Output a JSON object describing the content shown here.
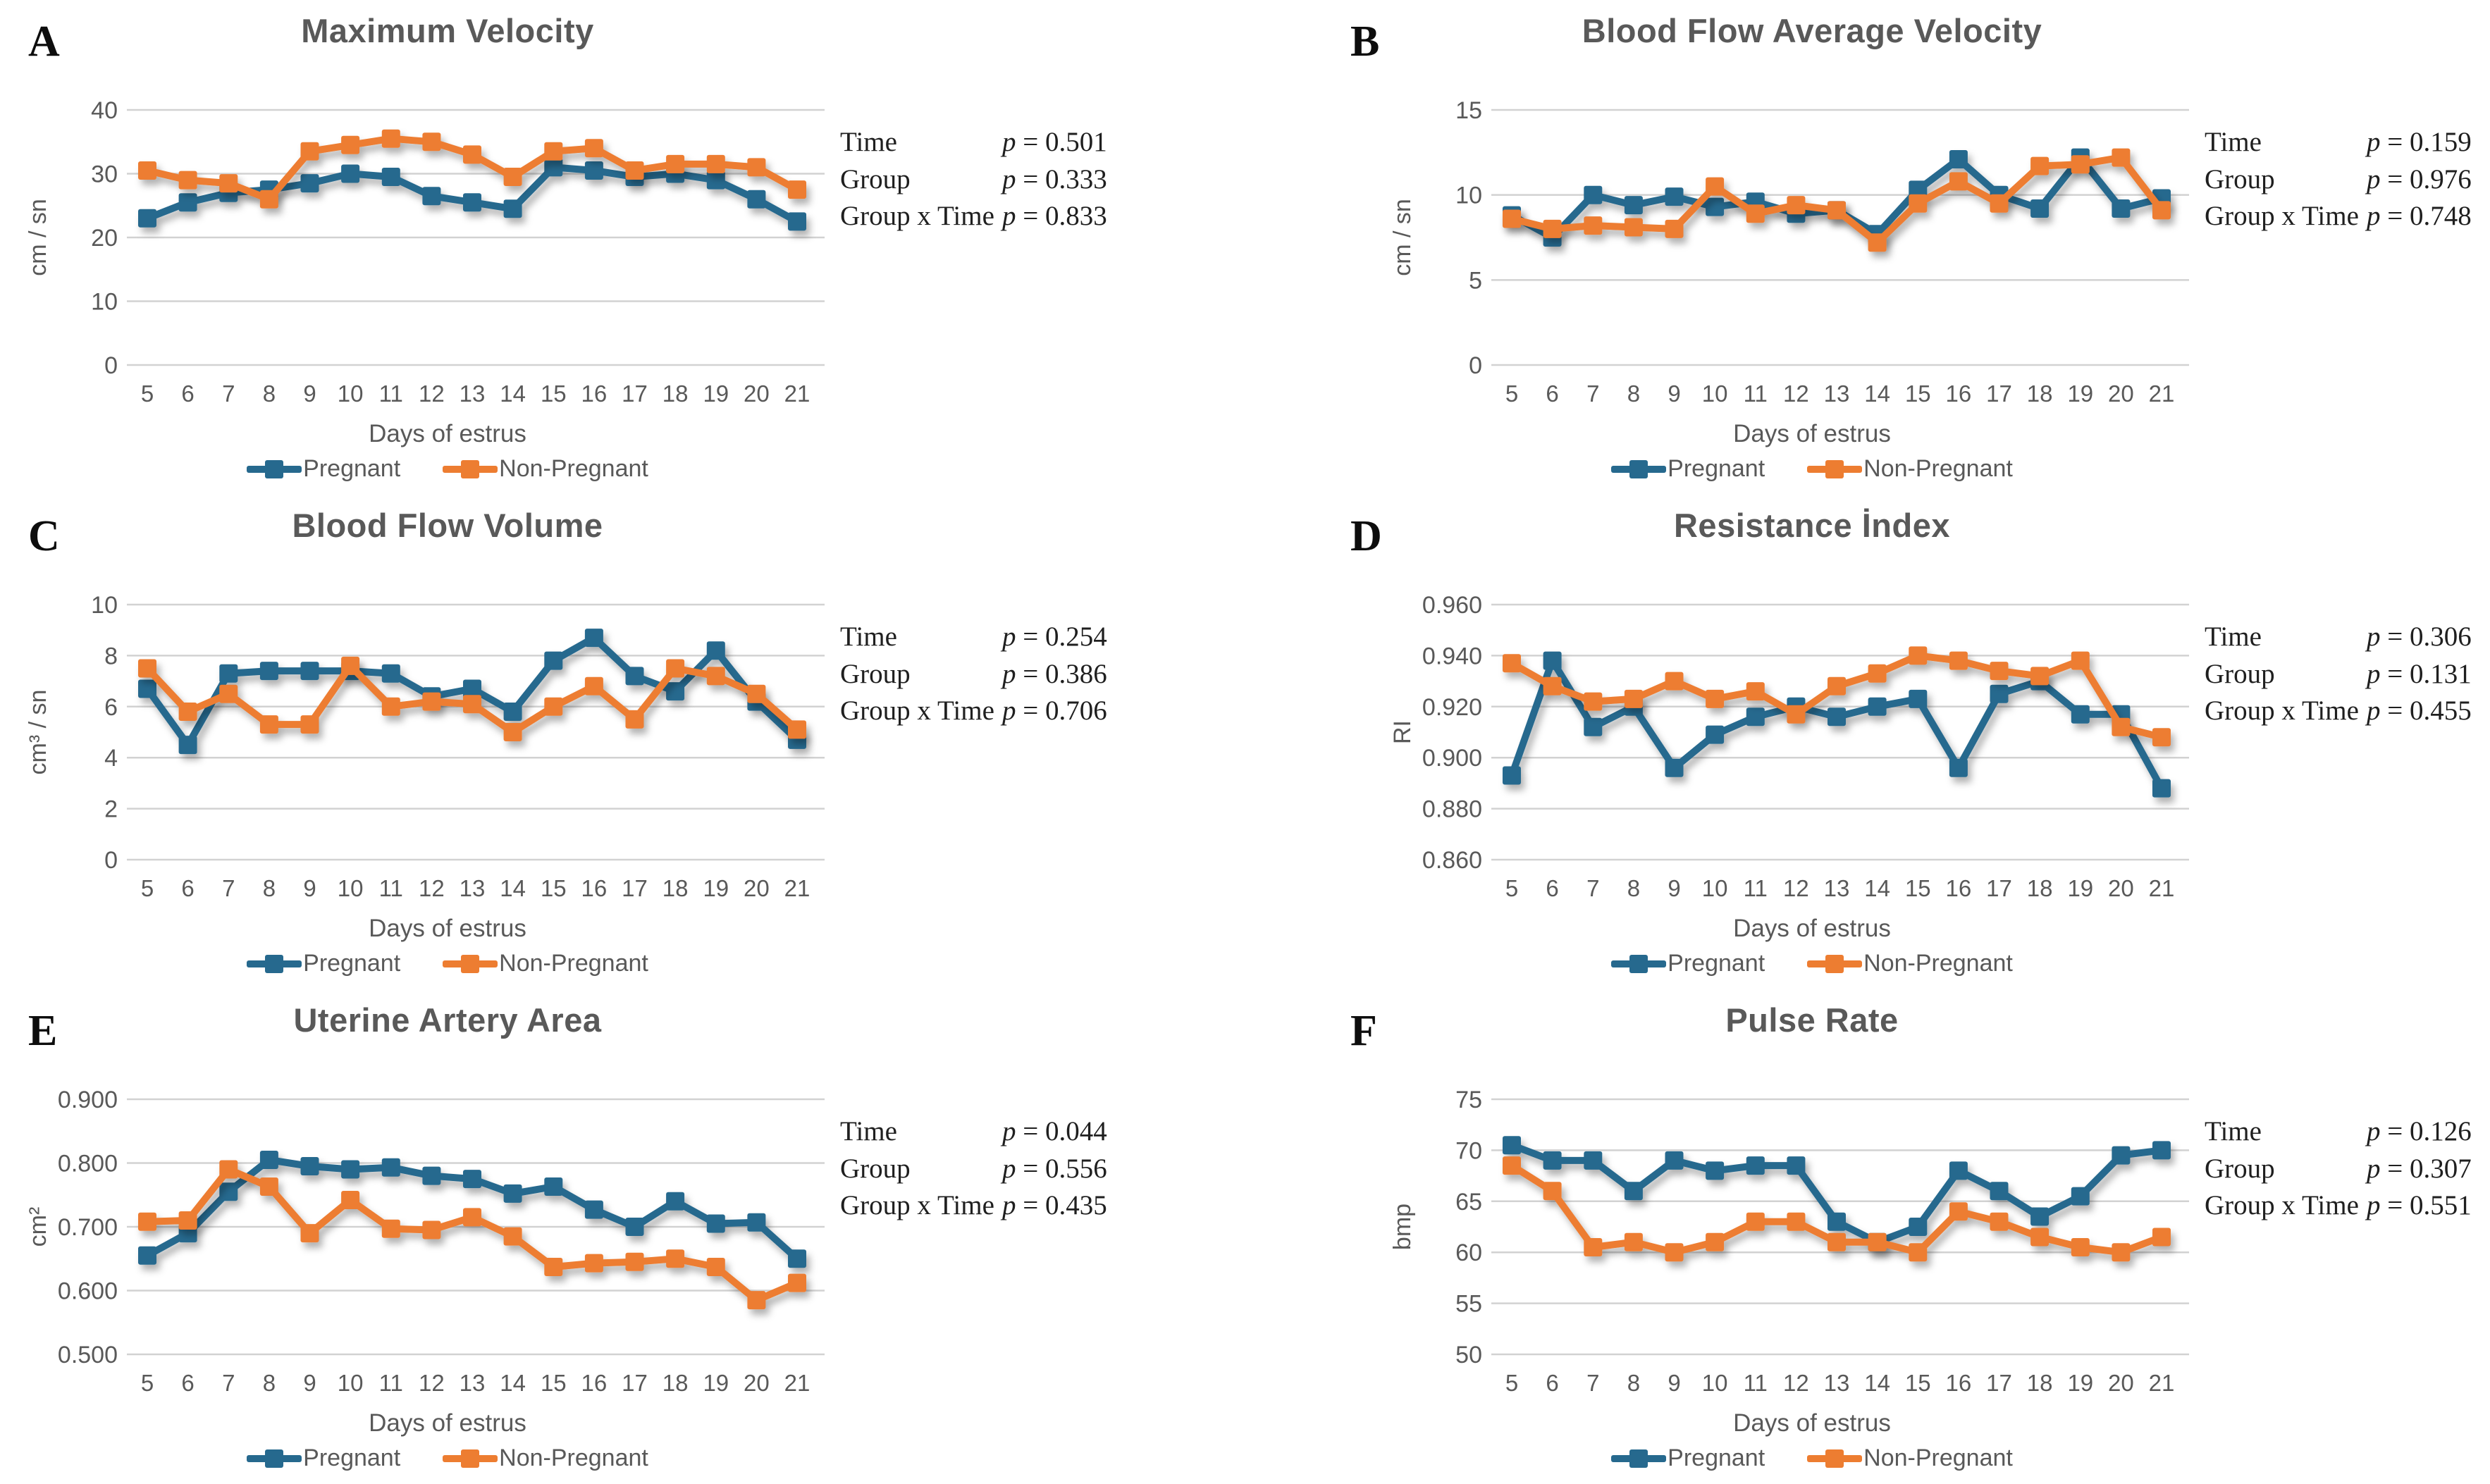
{
  "figure": {
    "x_axis_label": "Days of estrus",
    "days": [
      5,
      6,
      7,
      8,
      9,
      10,
      11,
      12,
      13,
      14,
      15,
      16,
      17,
      18,
      19,
      20,
      21
    ],
    "legend": [
      {
        "key": "pregnant",
        "label": "Pregnant"
      },
      {
        "key": "non_pregnant",
        "label": "Non-Pregnant"
      }
    ],
    "p_symbol": "p",
    "equals": "=",
    "colors": {
      "pregnant": "#26698E",
      "non_pregnant": "#ED7D31",
      "title_text": "#595959",
      "axis_text": "#595959",
      "gridline": "#D2D2D2",
      "stats_text": "#1F1F1F",
      "letter_text": "#0D0D0D"
    }
  },
  "chart_data": [
    {
      "type": "line",
      "letter": "A",
      "title": "Maximum Velocity",
      "ylabel": "cm / sn",
      "xlabel": "Days of estrus",
      "x": [
        5,
        6,
        7,
        8,
        9,
        10,
        11,
        12,
        13,
        14,
        15,
        16,
        17,
        18,
        19,
        20,
        21
      ],
      "ylim": [
        0,
        40
      ],
      "ytick_values": [
        0,
        10,
        20,
        30,
        40
      ],
      "ytick_labels": [
        "0",
        "10",
        "20",
        "30",
        "40"
      ],
      "grid": true,
      "legend_position": "bottom",
      "series": [
        {
          "name": "Pregnant",
          "values": [
            23,
            25.5,
            27,
            27.5,
            28.5,
            30,
            29.5,
            26.5,
            25.5,
            24.5,
            31,
            30.5,
            29.5,
            30,
            29,
            26,
            22.5
          ]
        },
        {
          "name": "Non-Pregnant",
          "values": [
            30.5,
            29,
            28.5,
            26,
            33.5,
            34.5,
            35.5,
            35,
            33,
            29.5,
            33.5,
            34,
            30.5,
            31.5,
            31.5,
            31,
            27.5
          ]
        }
      ],
      "stats": [
        {
          "label": "Time",
          "p": "0.501"
        },
        {
          "label": "Group",
          "p": "0.333"
        },
        {
          "label": "Group x Time",
          "p": "0.833"
        }
      ]
    },
    {
      "type": "line",
      "letter": "B",
      "title": "Blood Flow Average Velocity",
      "ylabel": "cm / sn",
      "xlabel": "Days of estrus",
      "x": [
        5,
        6,
        7,
        8,
        9,
        10,
        11,
        12,
        13,
        14,
        15,
        16,
        17,
        18,
        19,
        20,
        21
      ],
      "ylim": [
        0,
        15
      ],
      "ytick_values": [
        0,
        5,
        10,
        15
      ],
      "ytick_labels": [
        "0",
        "5",
        "10",
        "15"
      ],
      "grid": true,
      "legend_position": "bottom",
      "series": [
        {
          "name": "Pregnant",
          "values": [
            8.8,
            7.5,
            10,
            9.4,
            9.9,
            9.3,
            9.6,
            8.9,
            9.1,
            7.7,
            10.3,
            12.1,
            10,
            9.2,
            12.2,
            9.2,
            9.8
          ]
        },
        {
          "name": "Non-Pregnant",
          "values": [
            8.6,
            8,
            8.2,
            8.1,
            8,
            10.5,
            8.9,
            9.4,
            9.1,
            7.2,
            9.5,
            10.8,
            9.5,
            11.7,
            11.8,
            12.2,
            9.1
          ]
        }
      ],
      "stats": [
        {
          "label": "Time",
          "p": "0.159"
        },
        {
          "label": "Group",
          "p": "0.976"
        },
        {
          "label": "Group x Time",
          "p": "0.748"
        }
      ]
    },
    {
      "type": "line",
      "letter": "C",
      "title": "Blood Flow Volume",
      "ylabel": "cm³ / sn",
      "xlabel": "Days of estrus",
      "x": [
        5,
        6,
        7,
        8,
        9,
        10,
        11,
        12,
        13,
        14,
        15,
        16,
        17,
        18,
        19,
        20,
        21
      ],
      "ylim": [
        0,
        10
      ],
      "ytick_values": [
        0,
        2,
        4,
        6,
        8,
        10
      ],
      "ytick_labels": [
        "0",
        "2",
        "4",
        "6",
        "8",
        "10"
      ],
      "grid": true,
      "legend_position": "bottom",
      "series": [
        {
          "name": "Pregnant",
          "values": [
            6.7,
            4.5,
            7.3,
            7.4,
            7.4,
            7.4,
            7.3,
            6.4,
            6.7,
            5.8,
            7.8,
            8.7,
            7.2,
            6.6,
            8.2,
            6.2,
            4.7
          ]
        },
        {
          "name": "Non-Pregnant",
          "values": [
            7.5,
            5.8,
            6.5,
            5.3,
            5.3,
            7.6,
            6,
            6.2,
            6.1,
            5,
            6,
            6.8,
            5.5,
            7.5,
            7.2,
            6.5,
            5.1
          ]
        }
      ],
      "stats": [
        {
          "label": "Time",
          "p": "0.254"
        },
        {
          "label": "Group",
          "p": "0.386"
        },
        {
          "label": "Group x Time",
          "p": "0.706"
        }
      ]
    },
    {
      "type": "line",
      "letter": "D",
      "title": "Resistance İndex",
      "ylabel": "RI",
      "xlabel": "Days of estrus",
      "x": [
        5,
        6,
        7,
        8,
        9,
        10,
        11,
        12,
        13,
        14,
        15,
        16,
        17,
        18,
        19,
        20,
        21
      ],
      "ylim": [
        0.86,
        0.96
      ],
      "ytick_values": [
        0.86,
        0.88,
        0.9,
        0.92,
        0.94,
        0.96
      ],
      "ytick_labels": [
        "0.860",
        "0.880",
        "0.900",
        "0.920",
        "0.940",
        "0.960"
      ],
      "grid": true,
      "legend_position": "bottom",
      "series": [
        {
          "name": "Pregnant",
          "values": [
            0.893,
            0.938,
            0.912,
            0.92,
            0.896,
            0.909,
            0.916,
            0.92,
            0.916,
            0.92,
            0.923,
            0.896,
            0.925,
            0.93,
            0.917,
            0.917,
            0.888
          ]
        },
        {
          "name": "Non-Pregnant",
          "values": [
            0.937,
            0.928,
            0.922,
            0.923,
            0.93,
            0.923,
            0.926,
            0.917,
            0.928,
            0.933,
            0.94,
            0.938,
            0.934,
            0.932,
            0.938,
            0.912,
            0.908
          ]
        }
      ],
      "stats": [
        {
          "label": "Time",
          "p": "0.306"
        },
        {
          "label": "Group",
          "p": "0.131"
        },
        {
          "label": "Group x Time",
          "p": "0.455"
        }
      ]
    },
    {
      "type": "line",
      "letter": "E",
      "title": "Uterine Artery Area",
      "ylabel": "cm²",
      "xlabel": "Days of estrus",
      "x": [
        5,
        6,
        7,
        8,
        9,
        10,
        11,
        12,
        13,
        14,
        15,
        16,
        17,
        18,
        19,
        20,
        21
      ],
      "ylim": [
        0.5,
        0.9
      ],
      "ytick_values": [
        0.5,
        0.6,
        0.7,
        0.8,
        0.9
      ],
      "ytick_labels": [
        "0.500",
        "0.600",
        "0.700",
        "0.800",
        "0.900"
      ],
      "grid": true,
      "legend_position": "bottom",
      "series": [
        {
          "name": "Pregnant",
          "values": [
            0.655,
            0.69,
            0.755,
            0.805,
            0.795,
            0.79,
            0.793,
            0.78,
            0.775,
            0.752,
            0.763,
            0.727,
            0.7,
            0.74,
            0.705,
            0.707,
            0.65
          ]
        },
        {
          "name": "Non-Pregnant",
          "values": [
            0.708,
            0.71,
            0.79,
            0.763,
            0.69,
            0.742,
            0.697,
            0.695,
            0.715,
            0.685,
            0.637,
            0.643,
            0.645,
            0.65,
            0.637,
            0.585,
            0.612
          ]
        }
      ],
      "stats": [
        {
          "label": "Time",
          "p": "0.044"
        },
        {
          "label": "Group",
          "p": "0.556"
        },
        {
          "label": "Group x Time",
          "p": "0.435"
        }
      ]
    },
    {
      "type": "line",
      "letter": "F",
      "title": "Pulse Rate",
      "ylabel": "bmp",
      "xlabel": "Days of estrus",
      "x": [
        5,
        6,
        7,
        8,
        9,
        10,
        11,
        12,
        13,
        14,
        15,
        16,
        17,
        18,
        19,
        20,
        21
      ],
      "ylim": [
        50,
        75
      ],
      "ytick_values": [
        50,
        55,
        60,
        65,
        70,
        75
      ],
      "ytick_labels": [
        "50",
        "55",
        "60",
        "65",
        "70",
        "75"
      ],
      "grid": true,
      "legend_position": "bottom",
      "series": [
        {
          "name": "Pregnant",
          "values": [
            70.5,
            69,
            69,
            66,
            69,
            68,
            68.5,
            68.5,
            63,
            61,
            62.5,
            68,
            66,
            63.5,
            65.5,
            69.5,
            70
          ]
        },
        {
          "name": "Non-Pregnant",
          "values": [
            68.5,
            66,
            60.5,
            61,
            60,
            61,
            63,
            63,
            61,
            61,
            60,
            64,
            63,
            61.5,
            60.5,
            60,
            61.5
          ]
        }
      ],
      "stats": [
        {
          "label": "Time",
          "p": "0.126"
        },
        {
          "label": "Group",
          "p": "0.307"
        },
        {
          "label": "Group x Time",
          "p": "0.551"
        }
      ]
    }
  ]
}
